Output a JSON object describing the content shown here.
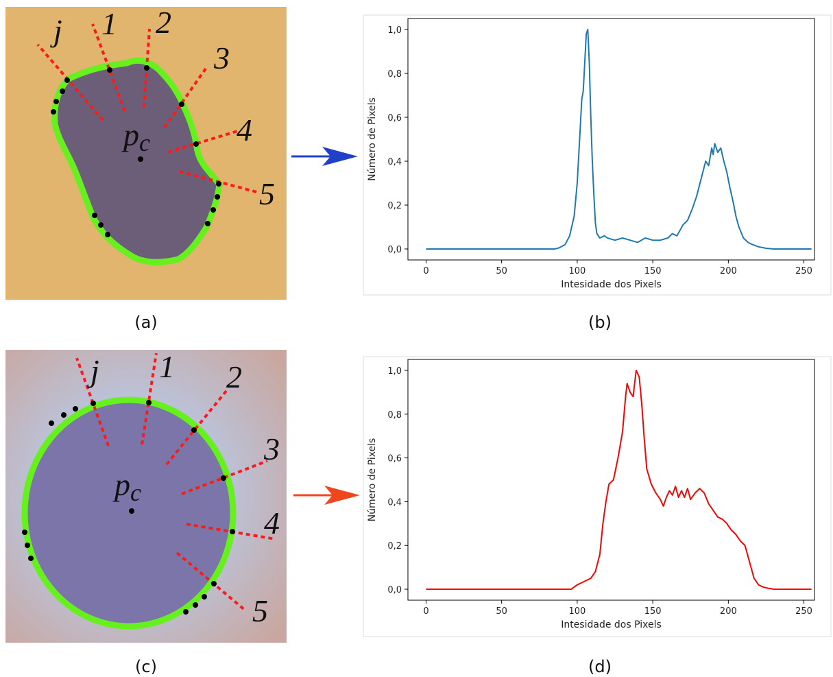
{
  "chart_data": [
    {
      "type": "line",
      "color": "#1f77b4",
      "xlabel": "Intesidade dos Pixels",
      "ylabel": "Número de Pixels",
      "x": [
        0,
        85,
        88,
        92,
        95,
        98,
        100,
        102,
        103,
        104,
        105,
        106,
        107,
        108,
        109,
        110,
        111,
        112,
        113,
        115,
        118,
        120,
        125,
        130,
        135,
        140,
        145,
        150,
        155,
        160,
        163,
        166,
        170,
        173,
        176,
        179,
        182,
        185,
        187,
        189,
        190,
        191,
        193,
        195,
        197,
        199,
        201,
        203,
        205,
        207,
        210,
        213,
        216,
        220,
        225,
        230,
        255
      ],
      "values": [
        0,
        0,
        0.005,
        0.02,
        0.06,
        0.15,
        0.3,
        0.55,
        0.68,
        0.72,
        0.85,
        0.98,
        1.0,
        0.85,
        0.6,
        0.4,
        0.25,
        0.12,
        0.07,
        0.05,
        0.06,
        0.05,
        0.04,
        0.05,
        0.04,
        0.03,
        0.05,
        0.04,
        0.04,
        0.05,
        0.07,
        0.06,
        0.11,
        0.13,
        0.18,
        0.24,
        0.32,
        0.4,
        0.38,
        0.46,
        0.43,
        0.48,
        0.44,
        0.46,
        0.4,
        0.35,
        0.28,
        0.22,
        0.15,
        0.1,
        0.05,
        0.03,
        0.02,
        0.01,
        0.003,
        0,
        0
      ],
      "xlim": [
        -12,
        257
      ],
      "ylim": [
        -0.05,
        1.05
      ],
      "xticks": [
        0,
        50,
        100,
        150,
        200,
        250
      ],
      "yticks": [
        {
          "value": 0,
          "label": "0,0"
        },
        {
          "value": 0.2,
          "label": "0,2"
        },
        {
          "value": 0.4,
          "label": "0,4"
        },
        {
          "value": 0.6,
          "label": "0,6"
        },
        {
          "value": 0.8,
          "label": "0,8"
        },
        {
          "value": 1.0,
          "label": "1,0"
        }
      ]
    },
    {
      "type": "line",
      "color": "#ff0000",
      "xlabel": "Intesidade dos Pixels",
      "ylabel": "Número de Pixels",
      "x": [
        0,
        96,
        98,
        100,
        103,
        106,
        109,
        112,
        115,
        117,
        119,
        121,
        124,
        127,
        130,
        132,
        133,
        135,
        137,
        139,
        141,
        142,
        143,
        144,
        146,
        149,
        152,
        155,
        157,
        159,
        161,
        163,
        165,
        167,
        169,
        171,
        173,
        175,
        178,
        181,
        184,
        187,
        190,
        193,
        196,
        199,
        202,
        205,
        208,
        211,
        213,
        215,
        217,
        220,
        223,
        226,
        230,
        255
      ],
      "values": [
        0,
        0,
        0.01,
        0.02,
        0.03,
        0.04,
        0.05,
        0.08,
        0.16,
        0.3,
        0.4,
        0.48,
        0.5,
        0.6,
        0.72,
        0.88,
        0.94,
        0.9,
        0.88,
        1.0,
        0.97,
        0.9,
        0.82,
        0.72,
        0.55,
        0.48,
        0.44,
        0.41,
        0.38,
        0.42,
        0.45,
        0.43,
        0.47,
        0.42,
        0.45,
        0.42,
        0.46,
        0.41,
        0.44,
        0.46,
        0.44,
        0.39,
        0.36,
        0.33,
        0.32,
        0.3,
        0.27,
        0.25,
        0.22,
        0.2,
        0.15,
        0.1,
        0.05,
        0.02,
        0.01,
        0.005,
        0,
        0
      ],
      "xlim": [
        -12,
        257
      ],
      "ylim": [
        -0.05,
        1.05
      ],
      "xticks": [
        0,
        50,
        100,
        150,
        200,
        250
      ],
      "yticks": [
        {
          "value": 0,
          "label": "0,0"
        },
        {
          "value": 0.2,
          "label": "0,2"
        },
        {
          "value": 0.4,
          "label": "0,4"
        },
        {
          "value": 0.6,
          "label": "0,6"
        },
        {
          "value": 0.8,
          "label": "0,8"
        },
        {
          "value": 1.0,
          "label": "1,0"
        }
      ]
    }
  ],
  "panel_labels": [
    "(a)",
    "(b)",
    "(c)",
    "(d)"
  ],
  "images": [
    {
      "annotations": [
        "j",
        "1",
        "2",
        "3",
        "4",
        "5"
      ],
      "center": "p",
      "center_sub": "c"
    },
    {
      "annotations": [
        "j",
        "1",
        "2",
        "3",
        "4",
        "5"
      ],
      "center": "p",
      "center_sub": "c"
    }
  ]
}
